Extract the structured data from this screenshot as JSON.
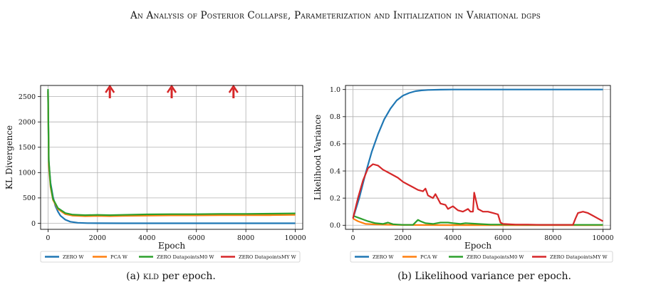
{
  "header": "An Analysis of Posterior Collapse, Parameterization and Initialization in Variational dgps",
  "colors": {
    "blue": "#1f77b4",
    "orange": "#ff7f0e",
    "green": "#2ca02c",
    "red": "#d62728"
  },
  "chart_data": [
    {
      "type": "line",
      "xlabel": "Epoch",
      "ylabel": "KL Divergence",
      "xlim": [
        -300,
        10300
      ],
      "ylim": [
        -120,
        2720
      ],
      "xticks": [
        0,
        2000,
        4000,
        6000,
        8000,
        10000
      ],
      "yticks": [
        0,
        500,
        1000,
        1500,
        2000,
        2500
      ],
      "grid": true,
      "legend": "bottom",
      "arrows_at": [
        2500,
        5000,
        7500
      ],
      "series": [
        {
          "name": "ZERO W",
          "color": "#1f77b4",
          "x": [
            0,
            30,
            100,
            200,
            300,
            400,
            500,
            700,
            900,
            1200,
            1600,
            2000,
            3000,
            5000,
            8000,
            10000
          ],
          "y": [
            2620,
            1200,
            800,
            520,
            340,
            230,
            150,
            70,
            30,
            10,
            3,
            1,
            0,
            0,
            0,
            0
          ]
        },
        {
          "name": "PCA W",
          "color": "#ff7f0e",
          "x": [
            0,
            30,
            100,
            200,
            400,
            700,
            1000,
            1500,
            2000,
            2500,
            3000,
            4000,
            5000,
            6000,
            7000,
            8000,
            9000,
            10000
          ],
          "y": [
            2600,
            1150,
            720,
            460,
            280,
            180,
            150,
            140,
            145,
            140,
            145,
            150,
            155,
            155,
            160,
            160,
            160,
            165
          ]
        },
        {
          "name": "ZERO DatapointsM0 W",
          "color": "#2ca02c",
          "x": [
            0,
            30,
            100,
            200,
            400,
            700,
            1000,
            1500,
            2000,
            2500,
            3000,
            4000,
            5000,
            6000,
            7000,
            8000,
            9000,
            10000
          ],
          "y": [
            2650,
            1250,
            760,
            480,
            300,
            200,
            170,
            160,
            165,
            160,
            165,
            175,
            180,
            180,
            185,
            185,
            190,
            195
          ]
        },
        {
          "name": "ZERO DatapointsMY W",
          "color": "#d62728",
          "x": [],
          "y": []
        }
      ]
    },
    {
      "type": "line",
      "xlabel": "Epoch",
      "ylabel": "Likelihood Variance",
      "xlim": [
        -300,
        10300
      ],
      "ylim": [
        -0.03,
        1.03
      ],
      "xticks": [
        0,
        2000,
        4000,
        6000,
        8000,
        10000
      ],
      "yticks": [
        0.0,
        0.2,
        0.4,
        0.6,
        0.8,
        1.0
      ],
      "grid": true,
      "legend": "bottom",
      "series": [
        {
          "name": "ZERO W",
          "color": "#1f77b4",
          "x": [
            0,
            250,
            500,
            750,
            1000,
            1250,
            1500,
            1750,
            2000,
            2250,
            2500,
            2750,
            3000,
            3500,
            4000,
            6000,
            8000,
            10000
          ],
          "y": [
            0.05,
            0.2,
            0.38,
            0.54,
            0.67,
            0.78,
            0.86,
            0.92,
            0.955,
            0.975,
            0.988,
            0.994,
            0.997,
            0.999,
            1.0,
            1.0,
            1.0,
            1.0
          ]
        },
        {
          "name": "PCA W",
          "color": "#ff7f0e",
          "x": [
            0,
            200,
            500,
            1000,
            2000,
            4000,
            6000,
            8000,
            10000
          ],
          "y": [
            0.05,
            0.03,
            0.01,
            0.005,
            0.002,
            0.001,
            0.001,
            0.001,
            0.001
          ]
        },
        {
          "name": "ZERO DatapointsM0 W",
          "color": "#2ca02c",
          "x": [
            0,
            300,
            600,
            900,
            1200,
            1400,
            1600,
            1800,
            2000,
            2400,
            2600,
            2700,
            2900,
            3200,
            3500,
            3800,
            4000,
            4300,
            4500,
            5000,
            5500,
            6000,
            7000,
            8000,
            10000
          ],
          "y": [
            0.07,
            0.05,
            0.03,
            0.015,
            0.01,
            0.02,
            0.008,
            0.005,
            0.003,
            0.003,
            0.04,
            0.03,
            0.015,
            0.01,
            0.02,
            0.02,
            0.015,
            0.01,
            0.015,
            0.01,
            0.005,
            0.005,
            0.003,
            0.003,
            0.003
          ]
        },
        {
          "name": "ZERO DatapointsMY W",
          "color": "#d62728",
          "x": [
            0,
            200,
            400,
            600,
            800,
            1000,
            1200,
            1500,
            1800,
            2000,
            2200,
            2400,
            2600,
            2800,
            2900,
            3000,
            3200,
            3300,
            3500,
            3700,
            3800,
            4000,
            4200,
            4400,
            4600,
            4700,
            4800,
            4850,
            4900,
            5000,
            5200,
            5400,
            5600,
            5800,
            5900,
            6000,
            6500,
            7000,
            7500,
            8000,
            8500,
            8800,
            8900,
            9000,
            9200,
            9400,
            9600,
            9800,
            10000
          ],
          "y": [
            0.05,
            0.2,
            0.33,
            0.42,
            0.45,
            0.44,
            0.41,
            0.38,
            0.35,
            0.32,
            0.3,
            0.28,
            0.26,
            0.25,
            0.27,
            0.22,
            0.2,
            0.23,
            0.16,
            0.15,
            0.12,
            0.14,
            0.11,
            0.1,
            0.12,
            0.1,
            0.1,
            0.24,
            0.2,
            0.12,
            0.1,
            0.1,
            0.09,
            0.08,
            0.02,
            0.01,
            0.005,
            0.005,
            0.003,
            0.003,
            0.003,
            0.003,
            0.05,
            0.09,
            0.1,
            0.09,
            0.07,
            0.05,
            0.03
          ]
        }
      ]
    }
  ],
  "captions": [
    {
      "label": "(a)",
      "acronym": "kld",
      "text": "per epoch."
    },
    {
      "label": "(b)",
      "text": "Likelihood variance per epoch."
    }
  ]
}
